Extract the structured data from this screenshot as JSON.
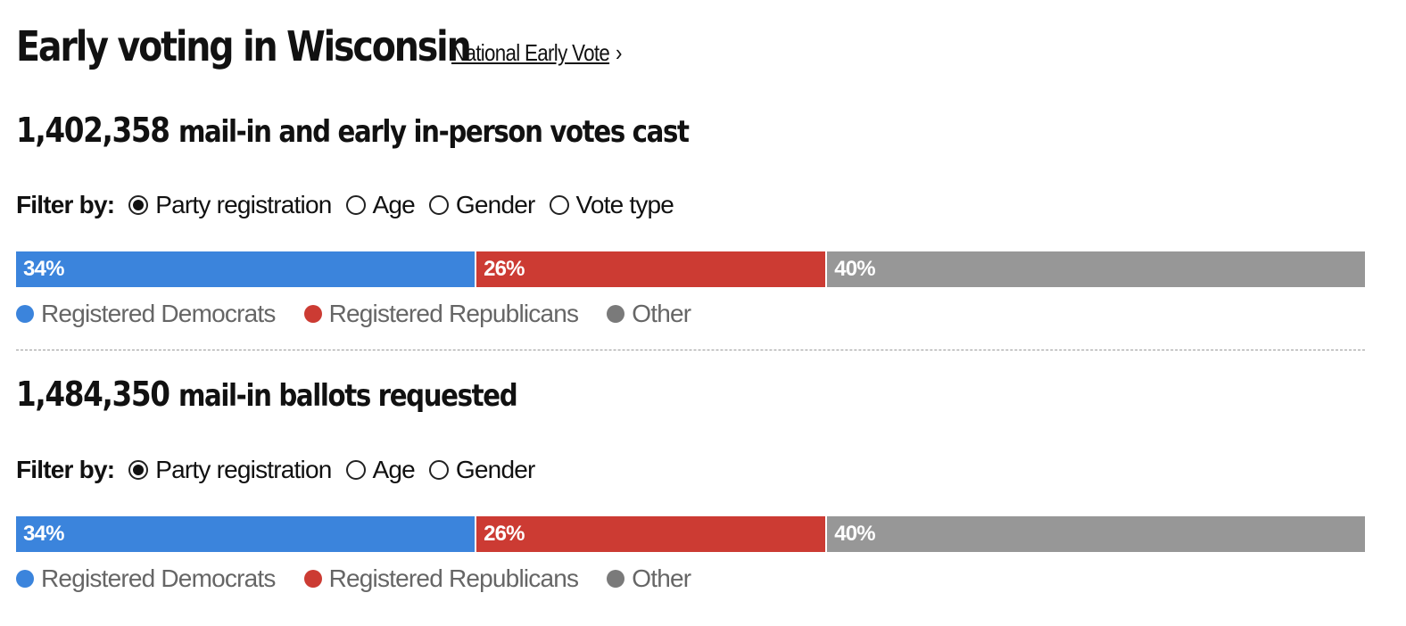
{
  "header": {
    "title": "Early voting in Wisconsin",
    "link_label": "National Early Vote",
    "link_chevron": "›"
  },
  "colors": {
    "democrats": "#3b84dc",
    "republicans": "#cc3b33",
    "other": "#979797",
    "other_dot": "#7a7a7a"
  },
  "sections": [
    {
      "count": "1,402,358",
      "headline": "mail-in and early in-person votes cast",
      "filter_label": "Filter by:",
      "options": [
        {
          "label": "Party registration",
          "checked": true
        },
        {
          "label": "Age",
          "checked": false
        },
        {
          "label": "Gender",
          "checked": false
        },
        {
          "label": "Vote type",
          "checked": false
        }
      ],
      "bar": [
        {
          "label": "34%",
          "value": 34,
          "key": "democrats"
        },
        {
          "label": "26%",
          "value": 26,
          "key": "republicans"
        },
        {
          "label": "40%",
          "value": 40,
          "key": "other"
        }
      ],
      "legend": [
        "Registered Democrats",
        "Registered Republicans",
        "Other"
      ]
    },
    {
      "count": "1,484,350",
      "headline": "mail-in ballots requested",
      "filter_label": "Filter by:",
      "options": [
        {
          "label": "Party registration",
          "checked": true
        },
        {
          "label": "Age",
          "checked": false
        },
        {
          "label": "Gender",
          "checked": false
        }
      ],
      "bar": [
        {
          "label": "34%",
          "value": 34,
          "key": "democrats"
        },
        {
          "label": "26%",
          "value": 26,
          "key": "republicans"
        },
        {
          "label": "40%",
          "value": 40,
          "key": "other"
        }
      ],
      "legend": [
        "Registered Democrats",
        "Registered Republicans",
        "Other"
      ]
    }
  ]
}
